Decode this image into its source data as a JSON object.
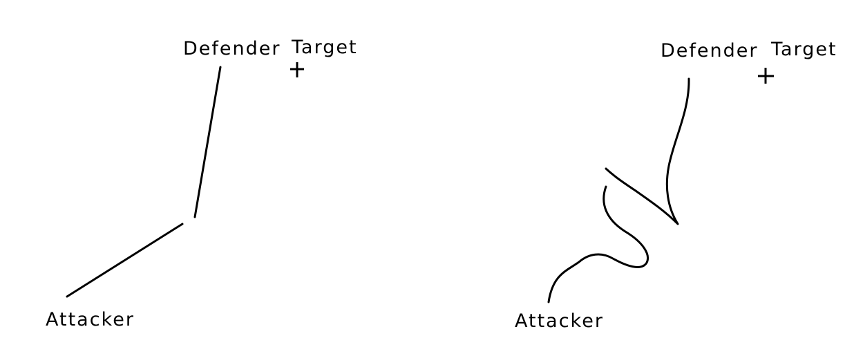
{
  "panels": [
    {
      "defender_label": "Defender",
      "target_label": "Target",
      "attacker_label": "Attacker"
    },
    {
      "defender_label": "Defender",
      "target_label": "Target",
      "attacker_label": "Attacker"
    }
  ],
  "colors": {
    "ink": "#000000",
    "background": "#ffffff"
  }
}
